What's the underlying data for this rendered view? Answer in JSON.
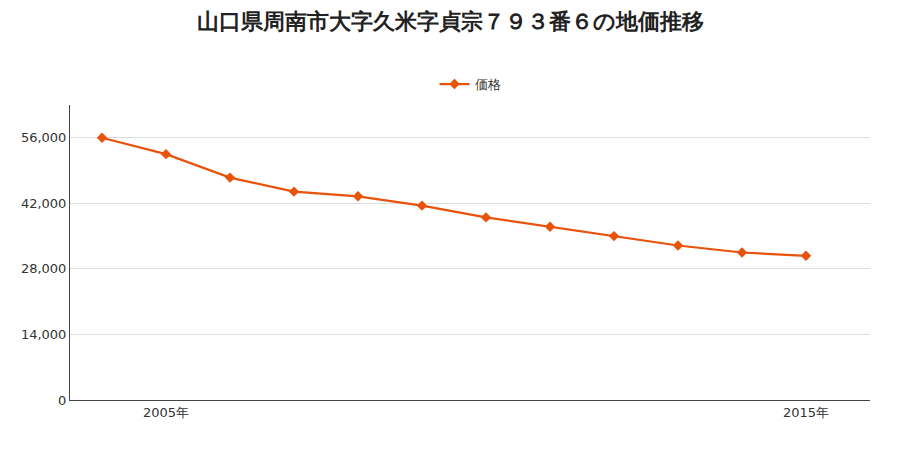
{
  "chart_data": {
    "type": "line",
    "title": "山口県周南市大字久米字貞宗７９３番６の地価推移",
    "x": [
      2004,
      2005,
      2006,
      2007,
      2008,
      2009,
      2010,
      2011,
      2012,
      2013,
      2014,
      2015
    ],
    "series": [
      {
        "name": "価格",
        "color": "#E8520A",
        "values": [
          56000,
          52500,
          47500,
          44500,
          43500,
          41500,
          39000,
          37000,
          35000,
          33000,
          31500,
          30800
        ]
      }
    ],
    "xlim": [
      2003.5,
      2016.0
    ],
    "xticks": [
      {
        "value": 2005,
        "label": "2005年"
      },
      {
        "value": 2015,
        "label": "2015年"
      }
    ],
    "ylim": [
      0,
      63000
    ],
    "yticks": [
      0,
      {
        "value": 14000,
        "label": "14,000"
      },
      {
        "value": 28000,
        "label": "28,000"
      },
      {
        "value": 42000,
        "label": "42,000"
      },
      {
        "value": 56000,
        "label": "56,000"
      }
    ],
    "grid": "y",
    "legend": "top",
    "marker": "diamond",
    "line_style": "solid"
  }
}
